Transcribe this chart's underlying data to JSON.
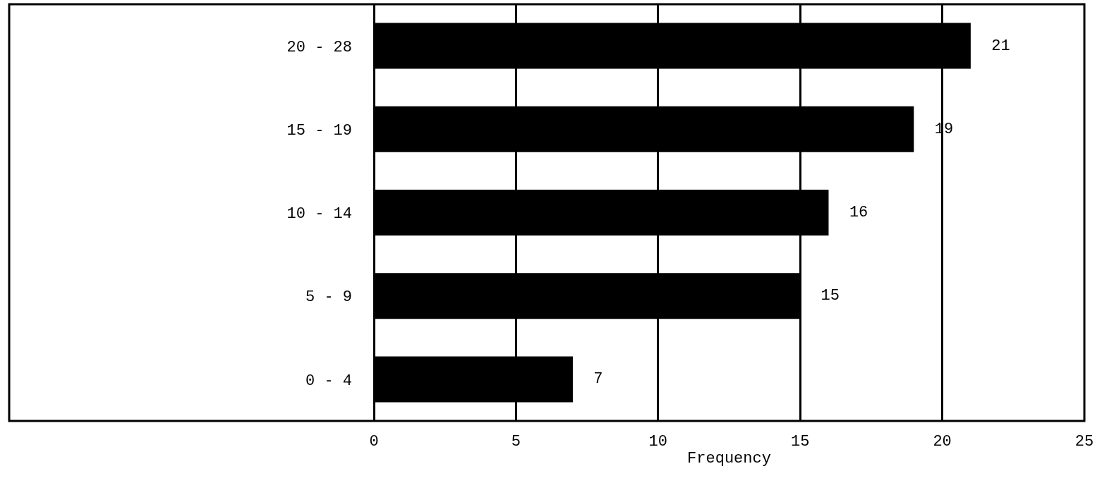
{
  "chart_data": {
    "type": "bar",
    "orientation": "horizontal",
    "categories": [
      "20 - 28",
      "15 - 19",
      "10 - 14",
      "5 - 9",
      "0 - 4"
    ],
    "values": [
      21,
      19,
      16,
      15,
      7
    ],
    "color": "#000000",
    "data_labels": true,
    "xlim": [
      0,
      25
    ],
    "xticks": [
      0,
      5,
      10,
      15,
      20,
      25
    ],
    "xlabel": "Frequency",
    "grid": "x"
  }
}
